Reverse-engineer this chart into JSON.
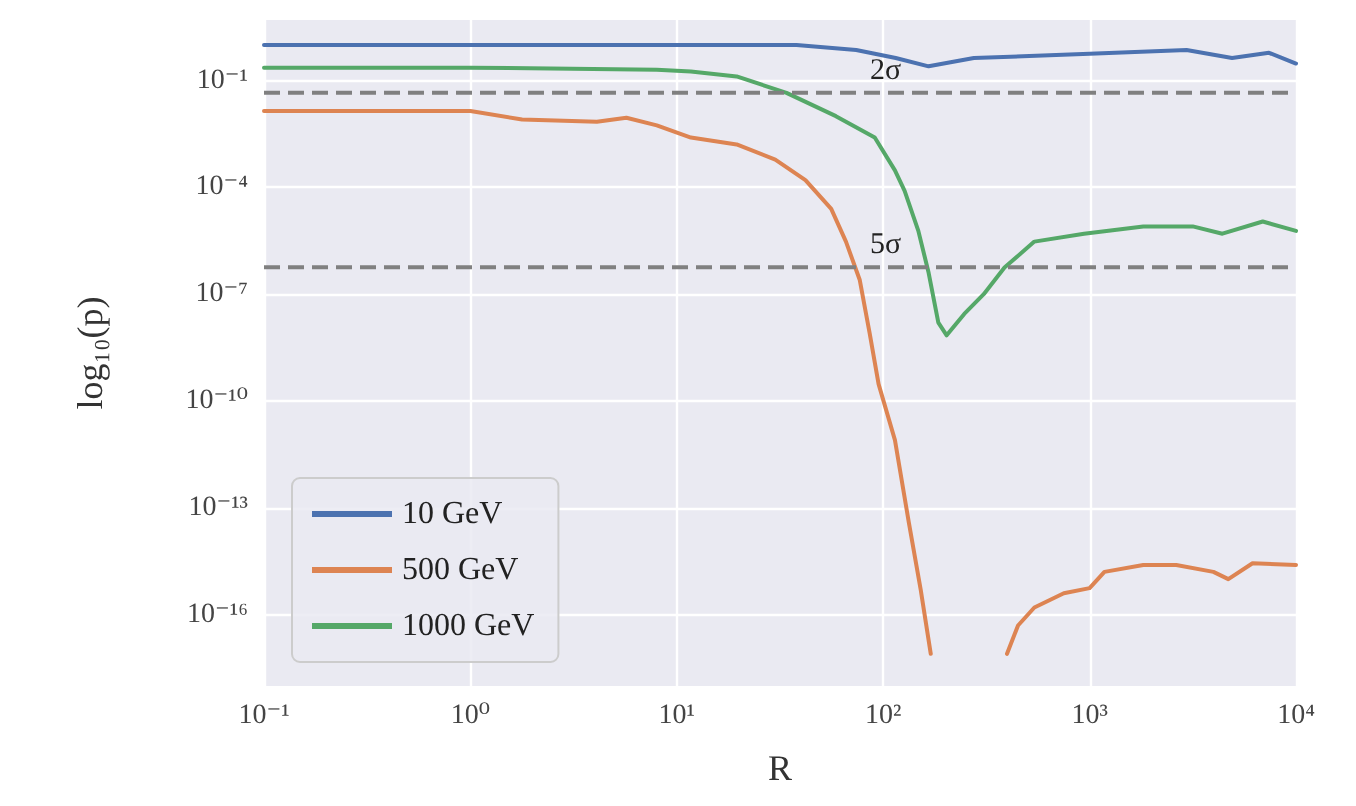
{
  "chart_data": {
    "type": "line",
    "xlabel": "R",
    "ylabel": "log₁₀(p)",
    "log": "xy",
    "grid": true,
    "legend": "bottom left",
    "line_style": "solid",
    "marker": "none",
    "xlim": [
      0.1,
      10000
    ],
    "xticks": [
      {
        "value": 0.1,
        "label": "10⁻¹"
      },
      {
        "value": 1,
        "label": "10⁰"
      },
      {
        "value": 10,
        "label": "10¹"
      },
      {
        "value": 100,
        "label": "10²"
      },
      {
        "value": 1000,
        "label": "10³"
      },
      {
        "value": 10000,
        "label": "10⁴"
      }
    ],
    "ylim": [
      1e-18,
      5
    ],
    "yticks": [
      {
        "value": 1e-16,
        "label": "10⁻¹⁶"
      },
      {
        "value": 1e-13,
        "label": "10⁻¹³"
      },
      {
        "value": 1e-10,
        "label": "10⁻¹⁰"
      },
      {
        "value": 1e-07,
        "label": "10⁻⁷"
      },
      {
        "value": 0.0001,
        "label": "10⁻⁴"
      },
      {
        "value": 0.1,
        "label": "10⁻¹"
      }
    ],
    "ref_lines": [
      {
        "axis": "y",
        "value": 0.0455,
        "label": "2σ",
        "color": "#808080",
        "line_style": "dashed"
      },
      {
        "axis": "y",
        "value": 5.7e-07,
        "label": "5σ",
        "color": "#808080",
        "line_style": "dashed"
      }
    ],
    "series": [
      {
        "name": "10 GeV",
        "color": "#4c72b0",
        "x": [
          0.1,
          1,
          10,
          38,
          74,
          115,
          166,
          275,
          1000,
          2950,
          4900,
          7400,
          10000
        ],
        "values": [
          1.0,
          1.0,
          1.0,
          1.0,
          0.72,
          0.43,
          0.25,
          0.43,
          0.56,
          0.72,
          0.43,
          0.6,
          0.3
        ]
      },
      {
        "name": "500 GeV",
        "color": "#dd8452",
        "x": [
          0.1,
          1,
          1.78,
          4.1,
          5.7,
          8,
          11.7,
          19.5,
          30,
          42,
          56,
          66,
          77,
          86,
          95,
          114,
          133,
          152,
          170,
          174,
          280,
          380,
          398,
          450,
          540,
          750,
          1000,
          1180,
          1820,
          2630,
          3980,
          4700,
          6160,
          10000
        ],
        "values": [
          0.014,
          0.014,
          0.008,
          0.007,
          0.009,
          0.0055,
          0.0025,
          0.0016,
          0.0006,
          0.00016,
          2.5e-05,
          3e-06,
          2.5e-07,
          8e-09,
          3e-10,
          8e-12,
          4e-14,
          5e-16,
          8e-18,
          null,
          null,
          null,
          8e-18,
          5e-17,
          1.6e-16,
          4e-16,
          5.6e-16,
          1.6e-15,
          2.5e-15,
          2.5e-15,
          1.6e-15,
          1e-15,
          2.8e-15,
          2.5e-15
        ]
      },
      {
        "name": "1000 GeV",
        "color": "#55a868",
        "x": [
          0.1,
          1,
          8,
          11.7,
          19.5,
          34,
          59,
          91,
          114,
          127,
          148,
          166,
          185,
          203,
          247,
          307,
          387,
          540,
          940,
          1820,
          3160,
          4400,
          6900,
          10000
        ],
        "values": [
          0.23,
          0.23,
          0.2,
          0.18,
          0.13,
          0.045,
          0.01,
          0.0025,
          0.0003,
          8e-05,
          6e-06,
          4e-07,
          1.6e-08,
          7e-09,
          2.8e-08,
          1e-07,
          5.6e-07,
          3e-06,
          5e-06,
          8e-06,
          8e-06,
          5e-06,
          1.1e-05,
          6e-06
        ]
      }
    ]
  }
}
